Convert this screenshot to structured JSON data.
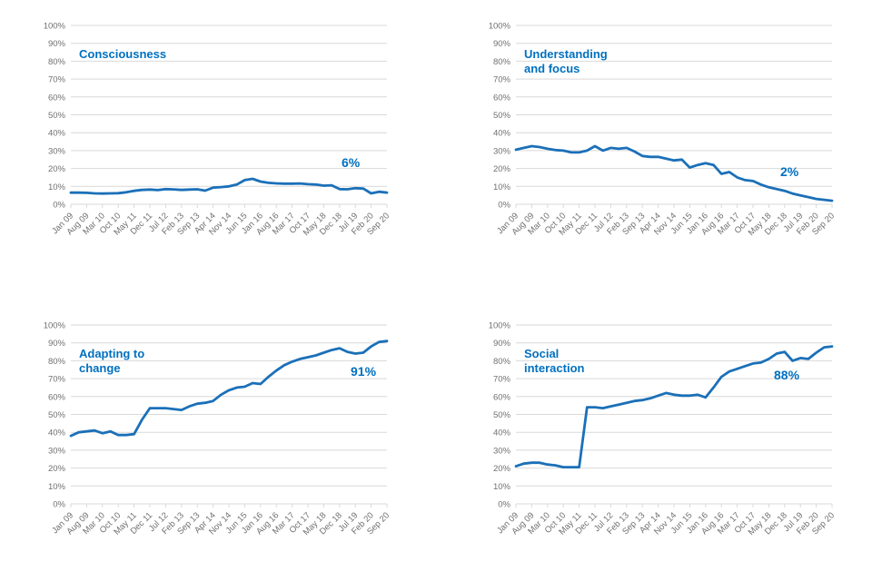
{
  "colors": {
    "line": "#1b70b8",
    "label": "#0070c0",
    "grid": "#d9d9d9",
    "tick_text": "#707070",
    "background": "#ffffff"
  },
  "axis": {
    "y_tick_labels": [
      "0%",
      "10%",
      "20%",
      "30%",
      "40%",
      "50%",
      "60%",
      "70%",
      "80%",
      "90%",
      "100%"
    ],
    "x_label_rotation_deg": 45
  },
  "chart_data": [
    {
      "type": "line",
      "title": "Consciousness",
      "end_label": "6%",
      "ylim": [
        0,
        100
      ],
      "grid": true,
      "legend": "none",
      "categories": [
        "Jan 09",
        "Aug 09",
        "Mar 10",
        "Oct 10",
        "May 11",
        "Dec 11",
        "Jul 12",
        "Feb 13",
        "Sep 13",
        "Apr 14",
        "Nov 14",
        "Jun 15",
        "Jan 16",
        "Aug 16",
        "Mar 17",
        "Oct 17",
        "May 18",
        "Dec 18",
        "Jul 19",
        "Feb 20",
        "Sep 20"
      ],
      "values": [
        6.5,
        6.5,
        6.4,
        6.1,
        6,
        6.1,
        6.2,
        6.7,
        7.5,
        8,
        8.2,
        7.9,
        8.5,
        8.3,
        8,
        8.2,
        8.4,
        7.6,
        9.3,
        9.6,
        10,
        11,
        13.5,
        14.2,
        12.7,
        12,
        11.7,
        11.5,
        11.5,
        11.6,
        11.2,
        11,
        10.4,
        10.6,
        8.5,
        8.4,
        9,
        8.8,
        6.1,
        7,
        6.5
      ]
    },
    {
      "type": "line",
      "title": "Understanding and focus",
      "end_label": "2%",
      "ylim": [
        0,
        100
      ],
      "grid": true,
      "legend": "none",
      "categories": [
        "Jan 09",
        "Aug 09",
        "Mar 10",
        "Oct 10",
        "May 11",
        "Dec 11",
        "Jul 12",
        "Feb 13",
        "Sep 13",
        "Apr 14",
        "Nov 14",
        "Jun 15",
        "Jan 16",
        "Aug 16",
        "Mar 17",
        "Oct 17",
        "May 18",
        "Dec 18",
        "Jul 19",
        "Feb 20",
        "Sep 20"
      ],
      "values": [
        30.5,
        31.5,
        32.5,
        32,
        31,
        30.3,
        30,
        29,
        29,
        30,
        32.5,
        30,
        31.5,
        31,
        31.5,
        29.5,
        27,
        26.5,
        26.5,
        25.5,
        24.5,
        25,
        20.5,
        22,
        23,
        22,
        17,
        18,
        15,
        13.5,
        13,
        11,
        9.5,
        8.5,
        7.5,
        6,
        5,
        4,
        3,
        2.5,
        2
      ]
    },
    {
      "type": "line",
      "title": "Adapting to change",
      "end_label": "91%",
      "ylim": [
        0,
        100
      ],
      "grid": true,
      "legend": "none",
      "categories": [
        "Jan 09",
        "Aug 09",
        "Mar 10",
        "Oct 10",
        "May 11",
        "Dec 11",
        "Jul 12",
        "Feb 13",
        "Sep 13",
        "Apr 14",
        "Nov 14",
        "Jun 15",
        "Jan 16",
        "Aug 16",
        "Mar 17",
        "Oct 17",
        "May 18",
        "Dec 18",
        "Jul 19",
        "Feb 20",
        "Sep 20"
      ],
      "values": [
        38,
        40,
        40.5,
        41,
        39.5,
        40.5,
        38.5,
        38.5,
        39,
        47,
        53.5,
        53.5,
        53.5,
        53,
        52.5,
        54.5,
        56,
        56.5,
        57.5,
        61,
        63.5,
        65,
        65.5,
        67.5,
        67,
        71,
        74.5,
        77.5,
        79.5,
        81,
        82,
        83,
        84.5,
        86,
        87,
        85,
        84,
        84.5,
        88,
        90.5,
        91
      ]
    },
    {
      "type": "line",
      "title": "Social interaction",
      "end_label": "88%",
      "ylim": [
        0,
        100
      ],
      "grid": true,
      "legend": "none",
      "categories": [
        "Jan 09",
        "Aug 09",
        "Mar 10",
        "Oct 10",
        "May 11",
        "Dec 11",
        "Jul 12",
        "Feb 13",
        "Sep 13",
        "Apr 14",
        "Nov 14",
        "Jun 15",
        "Jan 16",
        "Aug 16",
        "Mar 17",
        "Oct 17",
        "May 18",
        "Dec 18",
        "Jul 19",
        "Feb 20",
        "Sep 20"
      ],
      "values": [
        21,
        22.5,
        23,
        23,
        22,
        21.5,
        20.5,
        20.5,
        20.5,
        54,
        54,
        53.5,
        54.5,
        55.5,
        56.5,
        57.5,
        58,
        59,
        60.5,
        62,
        61,
        60.5,
        60.5,
        61,
        59.5,
        65,
        71,
        74,
        75.5,
        77,
        78.5,
        79,
        81,
        84,
        85,
        80,
        81.5,
        81,
        84.5,
        87.5,
        88
      ]
    }
  ]
}
